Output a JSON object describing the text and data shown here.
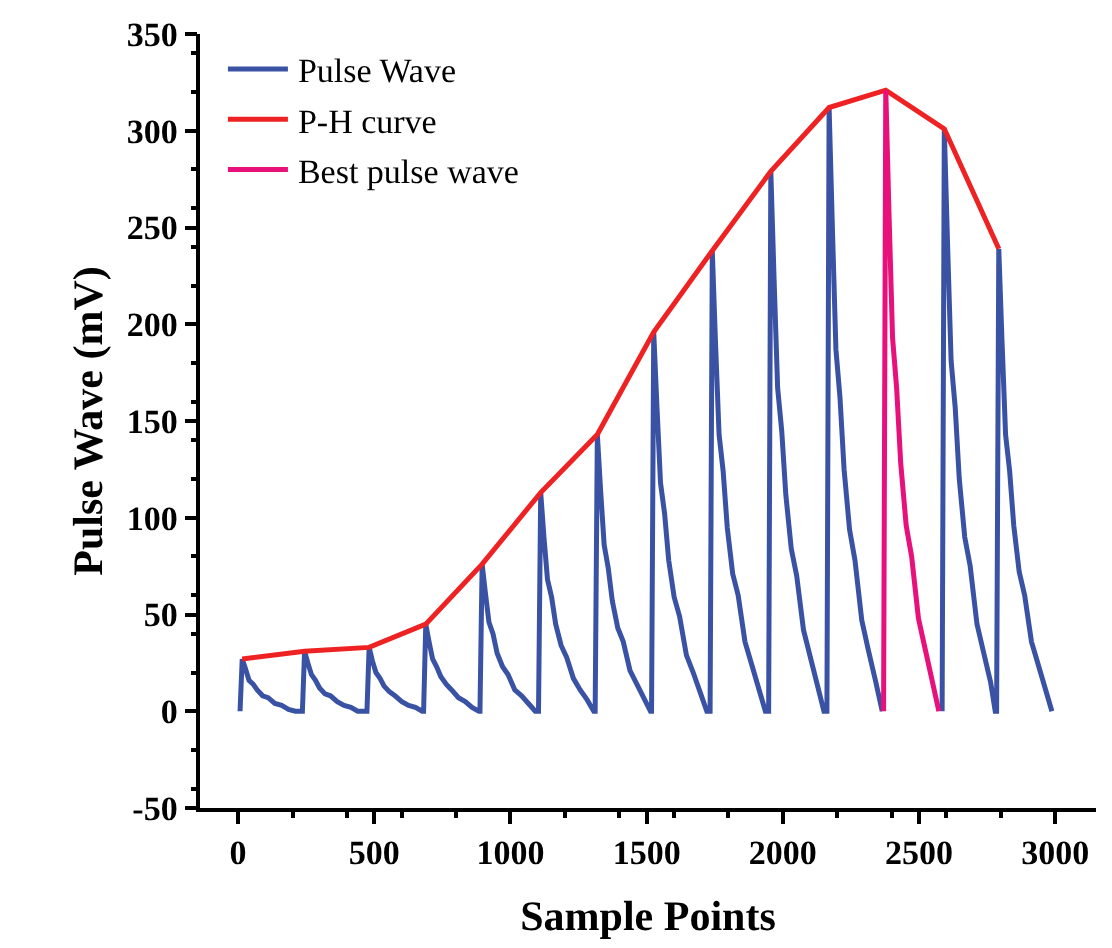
{
  "chart_data": {
    "type": "line",
    "xlabel": "Sample Points",
    "ylabel": "Pulse Wave (mV)",
    "xlim": [
      -140,
      3150
    ],
    "xticks": [
      0,
      500,
      1000,
      1500,
      2000,
      2500,
      3000
    ],
    "ylim": [
      -50,
      350
    ],
    "yticks": [
      -50,
      0,
      50,
      100,
      150,
      200,
      250,
      300,
      350
    ],
    "legend": "top left",
    "marker": "none",
    "line_style": "solid",
    "series": [
      {
        "name": "Pulse Wave",
        "color": "#3a52a4",
        "x": [
          7,
          15,
          27,
          40,
          55,
          70,
          90,
          110,
          135,
          160,
          185,
          210,
          236,
          244,
          256,
          269,
          284,
          299,
          319,
          339,
          364,
          389,
          414,
          439,
          473,
          481,
          493,
          506,
          521,
          536,
          556,
          576,
          601,
          626,
          651,
          676,
          681,
          689,
          701,
          714,
          729,
          744,
          764,
          784,
          809,
          834,
          859,
          884,
          888,
          896,
          908,
          921,
          936,
          951,
          971,
          991,
          1016,
          1041,
          1066,
          1091,
          1103,
          1111,
          1123,
          1136,
          1151,
          1166,
          1186,
          1206,
          1231,
          1256,
          1281,
          1306,
          1311,
          1319,
          1331,
          1344,
          1359,
          1374,
          1394,
          1414,
          1439,
          1464,
          1489,
          1514,
          1518,
          1526,
          1538,
          1551,
          1566,
          1581,
          1601,
          1621,
          1646,
          1671,
          1696,
          1721,
          1733,
          1741,
          1753,
          1766,
          1781,
          1796,
          1816,
          1836,
          1861,
          1886,
          1911,
          1936,
          1948,
          1956,
          1968,
          1981,
          1996,
          2011,
          2031,
          2051,
          2076,
          2101,
          2126,
          2151,
          2162,
          2170,
          2182,
          2195,
          2210,
          2225,
          2245,
          2265,
          2290,
          2315,
          2340,
          2365,
          2470,
          2585,
          2593,
          2605,
          2618,
          2633,
          2648,
          2668,
          2688,
          2713,
          2738,
          2763,
          2780,
          2785,
          2793,
          2805,
          2818,
          2833,
          2848,
          2868,
          2888,
          2913,
          2938,
          2963,
          2988
        ],
        "values": [
          0,
          27,
          22,
          16,
          14,
          11,
          8,
          7,
          4,
          3,
          1,
          0,
          0,
          31,
          25,
          19,
          16,
          12,
          9,
          8,
          5,
          3,
          2,
          0,
          0,
          33,
          26,
          20,
          17,
          13,
          10,
          8,
          5,
          3,
          2,
          0,
          0,
          45,
          36,
          27,
          23,
          18,
          14,
          11,
          7,
          5,
          2,
          0,
          0,
          76,
          61,
          46,
          40,
          30,
          23,
          19,
          11,
          8,
          4,
          0,
          0,
          113,
          90,
          68,
          59,
          45,
          34,
          28,
          17,
          11,
          6,
          0,
          0,
          143,
          114,
          86,
          74,
          57,
          43,
          36,
          21,
          14,
          7,
          0,
          0,
          196,
          157,
          118,
          102,
          78,
          59,
          49,
          29,
          20,
          10,
          0,
          0,
          238,
          190,
          143,
          124,
          95,
          71,
          60,
          36,
          24,
          12,
          0,
          0,
          279,
          223,
          167,
          145,
          112,
          84,
          70,
          42,
          28,
          14,
          0,
          0,
          312,
          250,
          187,
          162,
          125,
          94,
          78,
          47,
          31,
          16,
          0,
          null,
          0,
          301,
          241,
          181,
          157,
          120,
          90,
          75,
          45,
          30,
          15,
          0,
          0,
          239,
          191,
          143,
          124,
          96,
          72,
          60,
          36,
          24,
          12,
          0
        ]
      },
      {
        "name": "P-H curve",
        "color": "#ee2222",
        "x": [
          15,
          244,
          481,
          689,
          896,
          1111,
          1319,
          1526,
          1741,
          1956,
          2170,
          2378,
          2593,
          2793
        ],
        "values": [
          27,
          31,
          33,
          45,
          76,
          113,
          143,
          196,
          238,
          279,
          312,
          321,
          301,
          239
        ]
      },
      {
        "name": "Best pulse wave",
        "color": "#e8107a",
        "x": [
          2370,
          2378,
          2390,
          2403,
          2418,
          2433,
          2453,
          2473,
          2498,
          2523,
          2548,
          2573
        ],
        "values": [
          0,
          321,
          257,
          193,
          167,
          128,
          96,
          80,
          48,
          32,
          16,
          0
        ]
      }
    ]
  }
}
